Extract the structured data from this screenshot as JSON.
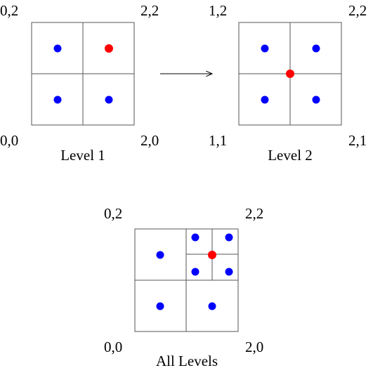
{
  "colors": {
    "point": "#0000ff",
    "highlight": "#ff0000",
    "grid": "#555555",
    "arrow": "#000000"
  },
  "panels": {
    "level1": {
      "caption": "Level 1",
      "corners": {
        "top_left": "0,2",
        "top_right": "2,2",
        "bottom_left": "0,0",
        "bottom_right": "2,0"
      },
      "highlight_point": "top-right cell center"
    },
    "level2": {
      "caption": "Level 2",
      "corners": {
        "top_left": "1,2",
        "top_right": "2,2",
        "bottom_left": "1,1",
        "bottom_right": "2,1"
      },
      "highlight_point": "grid center"
    },
    "all_levels": {
      "caption": "All Levels",
      "corners": {
        "top_left": "0,2",
        "top_right": "2,2",
        "bottom_left": "0,0",
        "bottom_right": "2,0"
      },
      "highlight_point": "center of top-right quadrant"
    }
  }
}
